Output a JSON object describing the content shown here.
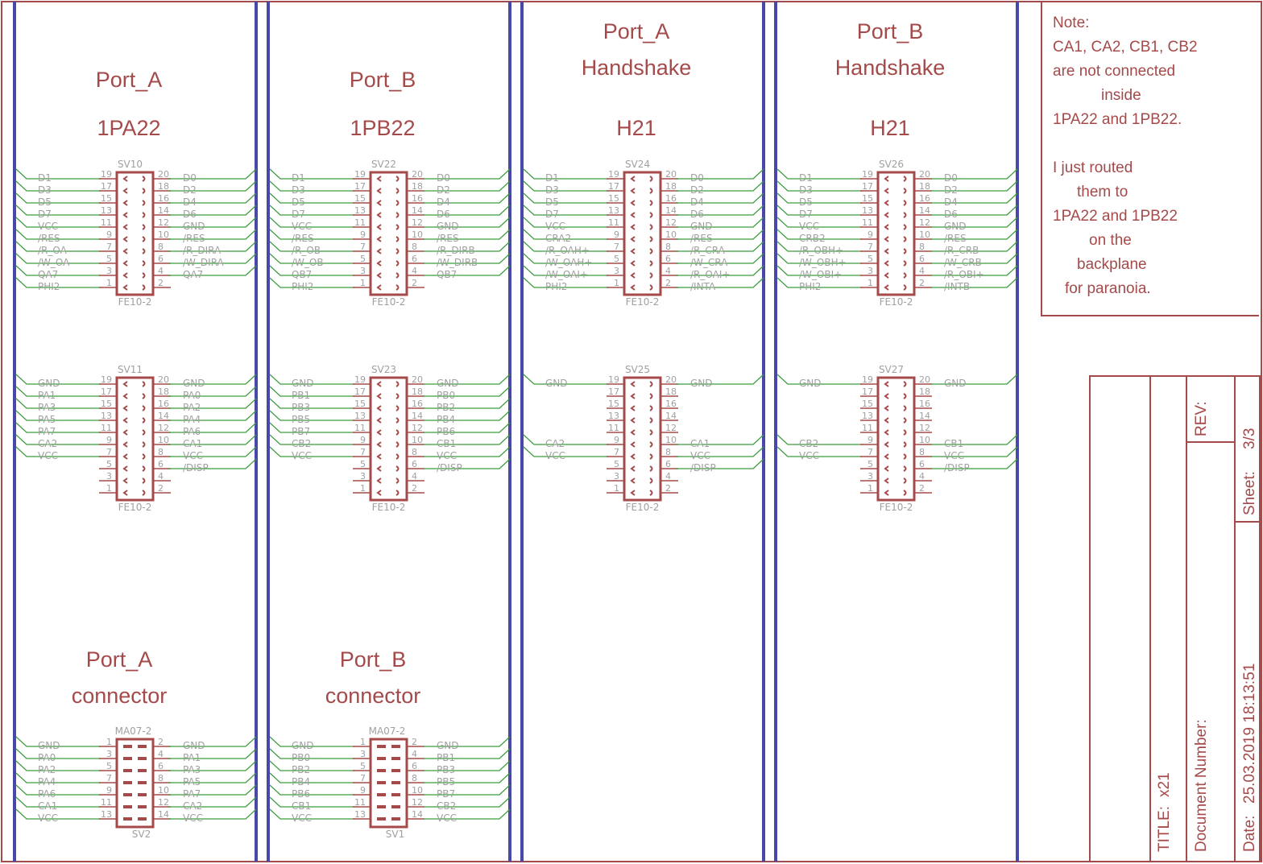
{
  "colors": {
    "frame": "#a54a4a",
    "net": "#3a9c3a",
    "bus": "#4848a8",
    "label": "#a0a0a0"
  },
  "columns": [
    {
      "top_heading": [
        "Port_A",
        "1PA22"
      ],
      "bottom_heading": [
        "Port_A",
        "connector"
      ]
    },
    {
      "top_heading": [
        "Port_B",
        "1PB22"
      ],
      "bottom_heading": [
        "Port_B",
        "connector"
      ]
    },
    {
      "top_heading": [
        "Port_A",
        "Handshake",
        "H21"
      ],
      "bottom_heading": []
    },
    {
      "top_heading": [
        "Port_B",
        "Handshake",
        "H21"
      ],
      "bottom_heading": []
    }
  ],
  "connectors": [
    {
      "column": 0,
      "group": "top",
      "name": "SV10",
      "value": "FE10-2",
      "type": "female",
      "rows": [
        [
          "D1",
          19,
          20,
          "D0"
        ],
        [
          "D3",
          17,
          18,
          "D2"
        ],
        [
          "D5",
          15,
          16,
          "D4"
        ],
        [
          "D7",
          13,
          14,
          "D6"
        ],
        [
          "VCC",
          11,
          12,
          "GND"
        ],
        [
          "/RES",
          9,
          10,
          "/RES"
        ],
        [
          "/R_OA",
          7,
          8,
          "/R_DIRA"
        ],
        [
          "/W_OA",
          5,
          6,
          "/W_DIRA"
        ],
        [
          "QA7",
          3,
          4,
          "QA7"
        ],
        [
          "PHI2",
          1,
          2,
          ""
        ]
      ]
    },
    {
      "column": 1,
      "group": "top",
      "name": "SV22",
      "value": "FE10-2",
      "type": "female",
      "rows": [
        [
          "D1",
          19,
          20,
          "D0"
        ],
        [
          "D3",
          17,
          18,
          "D2"
        ],
        [
          "D5",
          15,
          16,
          "D4"
        ],
        [
          "D7",
          13,
          14,
          "D6"
        ],
        [
          "VCC",
          11,
          12,
          "GND"
        ],
        [
          "/RES",
          9,
          10,
          "/RES"
        ],
        [
          "/R_OB",
          7,
          8,
          "/R_DIRB"
        ],
        [
          "/W_OB",
          5,
          6,
          "/W_DIRB"
        ],
        [
          "QB7",
          3,
          4,
          "QB7"
        ],
        [
          "PHI2",
          1,
          2,
          ""
        ]
      ]
    },
    {
      "column": 2,
      "group": "top",
      "name": "SV24",
      "value": "FE10-2",
      "type": "female",
      "rows": [
        [
          "D1",
          19,
          20,
          "D0"
        ],
        [
          "D3",
          17,
          18,
          "D2"
        ],
        [
          "D5",
          15,
          16,
          "D4"
        ],
        [
          "D7",
          13,
          14,
          "D6"
        ],
        [
          "VCC",
          11,
          12,
          "GND"
        ],
        [
          "CRA2",
          9,
          10,
          "/RES"
        ],
        [
          "/R_OAH+",
          7,
          8,
          "/R_CRA"
        ],
        [
          "/W_OAH+",
          5,
          6,
          "/W_CRA"
        ],
        [
          "/W_OAI+",
          3,
          4,
          "/R_OAI+"
        ],
        [
          "PHI2",
          1,
          2,
          "/INTA"
        ]
      ]
    },
    {
      "column": 3,
      "group": "top",
      "name": "SV26",
      "value": "FE10-2",
      "type": "female",
      "rows": [
        [
          "D1",
          19,
          20,
          "D0"
        ],
        [
          "D3",
          17,
          18,
          "D2"
        ],
        [
          "D5",
          15,
          16,
          "D4"
        ],
        [
          "D7",
          13,
          14,
          "D6"
        ],
        [
          "VCC",
          11,
          12,
          "GND"
        ],
        [
          "CRB2",
          9,
          10,
          "/RES"
        ],
        [
          "/R_OBH+",
          7,
          8,
          "/R_CRB"
        ],
        [
          "/W_OBH+",
          5,
          6,
          "/W_CRB"
        ],
        [
          "/W_OBI+",
          3,
          4,
          "/R_OBI+"
        ],
        [
          "PHI2",
          1,
          2,
          "/INTB"
        ]
      ]
    },
    {
      "column": 0,
      "group": "middle",
      "name": "SV11",
      "value": "FE10-2",
      "type": "female",
      "rows": [
        [
          "GND",
          19,
          20,
          "GND"
        ],
        [
          "PA1",
          17,
          18,
          "PA0"
        ],
        [
          "PA3",
          15,
          16,
          "PA2"
        ],
        [
          "PA5",
          13,
          14,
          "PA4"
        ],
        [
          "PA7",
          11,
          12,
          "PA6"
        ],
        [
          "CA2",
          9,
          10,
          "CA1"
        ],
        [
          "VCC",
          7,
          8,
          "VCC"
        ],
        [
          "",
          5,
          6,
          "/DISP"
        ],
        [
          "",
          3,
          4,
          ""
        ],
        [
          "",
          1,
          2,
          ""
        ]
      ]
    },
    {
      "column": 1,
      "group": "middle",
      "name": "SV23",
      "value": "FE10-2",
      "type": "female",
      "rows": [
        [
          "GND",
          19,
          20,
          "GND"
        ],
        [
          "PB1",
          17,
          18,
          "PB0"
        ],
        [
          "PB3",
          15,
          16,
          "PB2"
        ],
        [
          "PB5",
          13,
          14,
          "PB4"
        ],
        [
          "PB7",
          11,
          12,
          "PB6"
        ],
        [
          "CB2",
          9,
          10,
          "CB1"
        ],
        [
          "VCC",
          7,
          8,
          "VCC"
        ],
        [
          "",
          5,
          6,
          "/DISP"
        ],
        [
          "",
          3,
          4,
          ""
        ],
        [
          "",
          1,
          2,
          ""
        ]
      ]
    },
    {
      "column": 2,
      "group": "middle",
      "name": "SV25",
      "value": "FE10-2",
      "type": "female",
      "rows": [
        [
          "GND",
          19,
          20,
          "GND"
        ],
        [
          "",
          17,
          18,
          ""
        ],
        [
          "",
          15,
          16,
          ""
        ],
        [
          "",
          13,
          14,
          ""
        ],
        [
          "",
          11,
          12,
          ""
        ],
        [
          "CA2",
          9,
          10,
          "CA1"
        ],
        [
          "VCC",
          7,
          8,
          "VCC"
        ],
        [
          "",
          5,
          6,
          "/DISP"
        ],
        [
          "",
          3,
          4,
          ""
        ],
        [
          "",
          1,
          2,
          ""
        ]
      ]
    },
    {
      "column": 3,
      "group": "middle",
      "name": "SV27",
      "value": "FE10-2",
      "type": "female",
      "rows": [
        [
          "GND",
          19,
          20,
          "GND"
        ],
        [
          "",
          17,
          18,
          ""
        ],
        [
          "",
          15,
          16,
          ""
        ],
        [
          "",
          13,
          14,
          ""
        ],
        [
          "",
          11,
          12,
          ""
        ],
        [
          "CB2",
          9,
          10,
          "CB1"
        ],
        [
          "VCC",
          7,
          8,
          "VCC"
        ],
        [
          "",
          5,
          6,
          "/DISP"
        ],
        [
          "",
          3,
          4,
          ""
        ],
        [
          "",
          1,
          2,
          ""
        ]
      ]
    },
    {
      "column": 0,
      "group": "bottom",
      "name": "SV2",
      "value": "MA07-2",
      "type": "male",
      "rows": [
        [
          "GND",
          1,
          2,
          "GND"
        ],
        [
          "PA0",
          3,
          4,
          "PA1"
        ],
        [
          "PA2",
          5,
          6,
          "PA3"
        ],
        [
          "PA4",
          7,
          8,
          "PA5"
        ],
        [
          "PA6",
          9,
          10,
          "PA7"
        ],
        [
          "CA1",
          11,
          12,
          "CA2"
        ],
        [
          "VCC",
          13,
          14,
          "VCC"
        ]
      ]
    },
    {
      "column": 1,
      "group": "bottom",
      "name": "SV1",
      "value": "MA07-2",
      "type": "male",
      "rows": [
        [
          "GND",
          1,
          2,
          "GND"
        ],
        [
          "PB0",
          3,
          4,
          "PB1"
        ],
        [
          "PB2",
          5,
          6,
          "PB3"
        ],
        [
          "PB4",
          7,
          8,
          "PB5"
        ],
        [
          "PB6",
          9,
          10,
          "PB7"
        ],
        [
          "CB1",
          11,
          12,
          "CB2"
        ],
        [
          "VCC",
          13,
          14,
          "VCC"
        ]
      ]
    }
  ],
  "note": {
    "lines": [
      "Note:",
      "CA1, CA2, CB1, CB2",
      "are not connected",
      "inside",
      "1PA22 and 1PB22.",
      "",
      "I just routed",
      "them to",
      "1PA22 and 1PB22",
      "on the",
      "backplane",
      "for paranoia."
    ]
  },
  "title_block": {
    "title_label": "TITLE:",
    "title_value": "x21",
    "document_number_label": "Document Number:",
    "rev_label": "REV:",
    "date_label": "Date:",
    "date_value": "25.03.2019 18:13:51",
    "sheet_label": "Sheet:",
    "sheet_value": "3/3"
  }
}
